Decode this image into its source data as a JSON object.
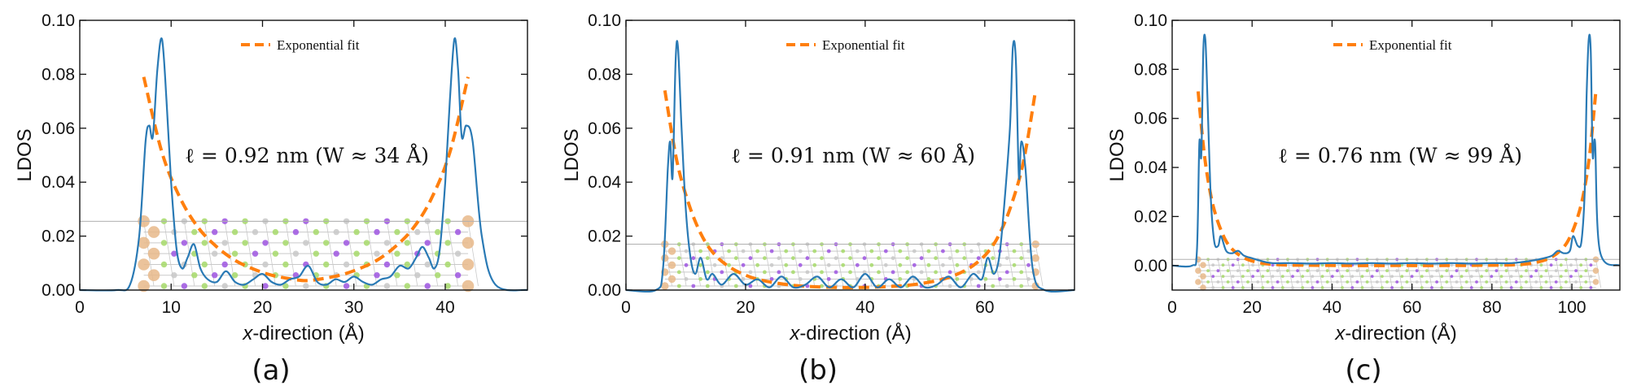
{
  "colors": {
    "ldos": "#2a7ab5",
    "fit": "#ff7f0e",
    "atom_a": "#e8b88a",
    "atom_b": "#9e55e0",
    "atom_c": "#a6d96a",
    "atom_d": "#c8c8c8",
    "bond": "#c9c9c9"
  },
  "chart_data": [
    {
      "type": "line",
      "panel_label": "(a)",
      "xlabel_italic": "x",
      "xlabel_rest": "-direction (Å)",
      "ylabel": "LDOS",
      "xlim": [
        0,
        49
      ],
      "ylim": [
        0,
        0.1
      ],
      "xticks": [
        0,
        10,
        20,
        30,
        40
      ],
      "xtick_labels": [
        "0",
        "10",
        "20",
        "30",
        "40"
      ],
      "yticks": [
        0,
        0.02,
        0.04,
        0.06,
        0.08,
        0.1
      ],
      "ytick_labels": [
        "0.00",
        "0.02",
        "0.04",
        "0.06",
        "0.08",
        "0.10"
      ],
      "legend": "Exponential fit",
      "annotation": "ℓ = 0.92 nm (W ≈ 34 Å)",
      "edges": [
        7,
        42.5
      ],
      "guide_y": 0.0255,
      "ribbon_ylim": [
        0.0015,
        0.0255
      ],
      "ribbon_cols": 16,
      "ribbon_rows": 6,
      "series": [
        {
          "name": "LDOS",
          "x": [
            0,
            4,
            5.5,
            6.5,
            7.2,
            7.6,
            8.0,
            8.5,
            9.0,
            9.5,
            10.0,
            10.6,
            11.2,
            11.8,
            12.5,
            13.2,
            14.0,
            15.0,
            16.0,
            17.0,
            18.0,
            19.0,
            20.0,
            21.0,
            22.0,
            23.0,
            24.0,
            25.0,
            26.0,
            27.0,
            28.0,
            29.0,
            30.0,
            31.0,
            32.0,
            33.0,
            34.0,
            35.0,
            36.0,
            36.8,
            37.5,
            38.2,
            38.8,
            39.4,
            40.0,
            40.5,
            41.0,
            41.4,
            41.8,
            42.3,
            43.0,
            44.0,
            45.5,
            49
          ],
          "y": [
            0,
            0,
            0.002,
            0.02,
            0.055,
            0.061,
            0.057,
            0.082,
            0.093,
            0.07,
            0.04,
            0.015,
            0.008,
            0.012,
            0.017,
            0.008,
            0.004,
            0.003,
            0.007,
            0.003,
            0.002,
            0.004,
            0.006,
            0.003,
            0.002,
            0.004,
            0.005,
            0.009,
            0.003,
            0.002,
            0.004,
            0.003,
            0.005,
            0.003,
            0.002,
            0.004,
            0.005,
            0.009,
            0.008,
            0.012,
            0.016,
            0.012,
            0.008,
            0.015,
            0.04,
            0.07,
            0.093,
            0.082,
            0.057,
            0.061,
            0.055,
            0.02,
            0.002,
            0
          ]
        },
        {
          "name": "Exponential fit",
          "x": [
            7,
            9,
            11,
            13,
            15,
            17,
            19,
            21,
            23,
            24.75,
            26.5,
            28.5,
            30.5,
            32.5,
            34.5,
            36.5,
            38.5,
            40.5,
            42.5
          ],
          "y": [
            0.079,
            0.051,
            0.034,
            0.023,
            0.016,
            0.011,
            0.0078,
            0.0055,
            0.0042,
            0.0035,
            0.0042,
            0.0055,
            0.0078,
            0.011,
            0.016,
            0.023,
            0.034,
            0.051,
            0.079
          ]
        }
      ]
    },
    {
      "type": "line",
      "panel_label": "(b)",
      "xlabel_italic": "x",
      "xlabel_rest": "-direction (Å)",
      "ylabel": "LDOS",
      "xlim": [
        0,
        75
      ],
      "ylim": [
        0,
        0.1
      ],
      "xticks": [
        0,
        20,
        40,
        60
      ],
      "xtick_labels": [
        "0",
        "20",
        "40",
        "60"
      ],
      "yticks": [
        0,
        0.02,
        0.04,
        0.06,
        0.08,
        0.1
      ],
      "ytick_labels": [
        "0.00",
        "0.02",
        "0.04",
        "0.06",
        "0.08",
        "0.10"
      ],
      "legend": "Exponential fit",
      "annotation": "ℓ = 0.91 nm (W ≈ 60 Å)",
      "edges": [
        6.5,
        68.5
      ],
      "guide_y": 0.017,
      "ribbon_ylim": [
        0.0015,
        0.017
      ],
      "ribbon_cols": 26,
      "ribbon_rows": 6,
      "series": [
        {
          "name": "LDOS",
          "x": [
            0,
            5,
            6.2,
            7.0,
            7.4,
            7.8,
            8.3,
            8.7,
            9.3,
            10.0,
            10.8,
            11.6,
            12.5,
            13.5,
            14.5,
            16,
            18,
            20,
            22,
            24,
            26,
            28,
            30,
            32,
            34,
            36,
            38,
            40,
            42,
            44,
            46,
            48,
            50,
            52,
            54,
            56,
            58,
            59.5,
            60.5,
            61.5,
            62.4,
            63.2,
            64.2,
            64.7,
            65.2,
            65.7,
            66.1,
            66.8,
            68,
            70,
            75
          ],
          "y": [
            0,
            0,
            0.008,
            0.045,
            0.055,
            0.042,
            0.085,
            0.09,
            0.06,
            0.03,
            0.012,
            0.006,
            0.012,
            0.004,
            0.006,
            0.002,
            0.006,
            0.002,
            0.004,
            0.001,
            0.005,
            0.001,
            0.002,
            0.005,
            0.001,
            0.004,
            0.001,
            0.006,
            0.001,
            0.004,
            0.001,
            0.005,
            0.001,
            0.002,
            0.005,
            0.001,
            0.006,
            0.004,
            0.012,
            0.006,
            0.012,
            0.03,
            0.06,
            0.09,
            0.085,
            0.042,
            0.055,
            0.045,
            0.008,
            0,
            0
          ]
        },
        {
          "name": "Exponential fit",
          "x": [
            6.5,
            8.5,
            10.5,
            12.5,
            14.5,
            17,
            20,
            23,
            27,
            31,
            35,
            37.5,
            40,
            44,
            48,
            52,
            55,
            58,
            60.5,
            62.5,
            64.5,
            66.5,
            68.5
          ],
          "y": [
            0.074,
            0.048,
            0.032,
            0.021,
            0.014,
            0.009,
            0.0055,
            0.0035,
            0.002,
            0.0013,
            0.001,
            0.0009,
            0.001,
            0.0013,
            0.002,
            0.0035,
            0.0055,
            0.009,
            0.014,
            0.021,
            0.032,
            0.048,
            0.074
          ]
        }
      ]
    },
    {
      "type": "line",
      "panel_label": "(c)",
      "xlabel_italic": "x",
      "xlabel_rest": "-direction (Å)",
      "ylabel": "LDOS",
      "xlim": [
        0,
        112
      ],
      "ylim": [
        -0.01,
        0.1
      ],
      "xticks": [
        0,
        20,
        40,
        60,
        80,
        100
      ],
      "xtick_labels": [
        "0",
        "20",
        "40",
        "60",
        "80",
        "100"
      ],
      "yticks": [
        0,
        0.02,
        0.04,
        0.06,
        0.08,
        0.1
      ],
      "ytick_labels": [
        "0.00",
        "0.02",
        "0.04",
        "0.06",
        "0.08",
        "0.10"
      ],
      "legend": "Exponential fit",
      "annotation": "ℓ = 0.76 nm (W ≈ 99 Å)",
      "edges": [
        6.5,
        106
      ],
      "guide_y": 0.0025,
      "ribbon_ylim": [
        -0.009,
        0.0025
      ],
      "ribbon_cols": 40,
      "ribbon_rows": 5,
      "series": [
        {
          "name": "LDOS",
          "x": [
            0,
            5,
            6.2,
            6.8,
            7.3,
            7.8,
            8.3,
            8.8,
            9.6,
            10.5,
            11.5,
            12.2,
            13.5,
            15,
            16.5,
            18,
            20,
            22,
            25,
            30,
            35,
            40,
            45,
            50,
            55,
            60,
            65,
            70,
            75,
            80,
            85,
            90,
            93,
            95,
            96.5,
            98,
            99.5,
            100.3,
            101.5,
            102.4,
            103.2,
            103.7,
            104.2,
            104.7,
            105.2,
            105.8,
            107,
            112
          ],
          "y": [
            0,
            0,
            0.006,
            0.05,
            0.045,
            0.088,
            0.092,
            0.07,
            0.03,
            0.01,
            0.008,
            0.012,
            0.006,
            0.005,
            0.006,
            0.004,
            0.003,
            0.002,
            0.001,
            0.001,
            0.0008,
            0.001,
            0.0008,
            0.001,
            0.0008,
            0.001,
            0.0008,
            0.001,
            0.0008,
            0.001,
            0.001,
            0.002,
            0.003,
            0.004,
            0.006,
            0.005,
            0.006,
            0.012,
            0.008,
            0.01,
            0.03,
            0.07,
            0.092,
            0.088,
            0.045,
            0.05,
            0.006,
            0
          ]
        },
        {
          "name": "Exponential fit",
          "x": [
            6.5,
            8,
            9.5,
            11,
            13,
            15,
            18,
            22,
            27,
            35,
            45,
            56.25,
            67.5,
            77.5,
            85.5,
            90.5,
            94.5,
            97.5,
            99.5,
            101.5,
            103,
            104.5,
            106
          ],
          "y": [
            0.071,
            0.046,
            0.03,
            0.02,
            0.0115,
            0.0067,
            0.0031,
            0.0011,
            0.0003,
            0.0001,
            0,
            0,
            0,
            0.0001,
            0.0003,
            0.0011,
            0.0031,
            0.0067,
            0.0115,
            0.02,
            0.03,
            0.046,
            0.071
          ]
        }
      ]
    }
  ]
}
